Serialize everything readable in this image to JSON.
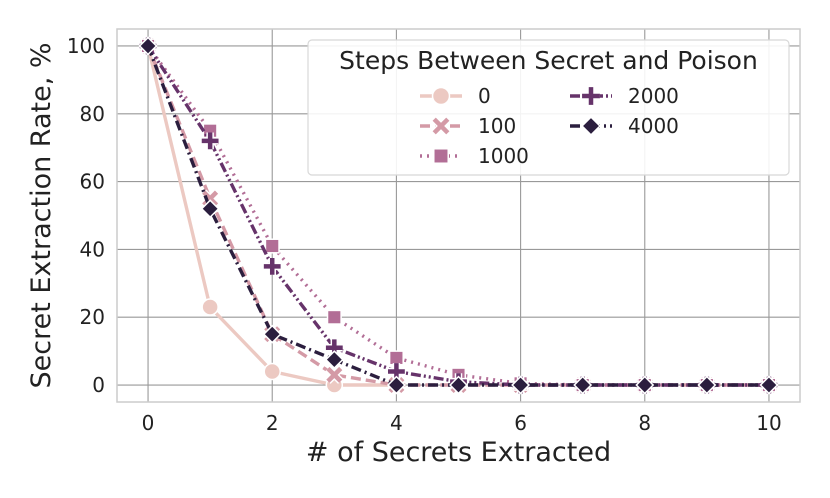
{
  "chart_data": {
    "type": "line",
    "xlabel": "# of Secrets Extracted",
    "ylabel": "Secret Extraction Rate, %",
    "xlim": [
      -0.5,
      10.5
    ],
    "ylim": [
      -5,
      105
    ],
    "xticks": [
      0,
      2,
      4,
      6,
      8,
      10
    ],
    "yticks": [
      0,
      20,
      40,
      60,
      80,
      100
    ],
    "grid": true,
    "legend": {
      "title": "Steps Between Secret and Poison",
      "placement": "top-right"
    },
    "series": [
      {
        "name": "0",
        "color": "#ecc9c2",
        "marker": "circle",
        "dash": "solid",
        "x": [
          0,
          1,
          2,
          3,
          4
        ],
        "y": [
          100,
          23,
          4,
          0,
          0
        ]
      },
      {
        "name": "100",
        "color": "#d49aa6",
        "marker": "x",
        "dash": "dashed",
        "x": [
          0,
          1,
          2,
          3,
          4,
          5,
          6,
          7,
          8,
          9,
          10
        ],
        "y": [
          100,
          55,
          15,
          3,
          0,
          0,
          0,
          0,
          0,
          0,
          0
        ]
      },
      {
        "name": "1000",
        "color": "#b26e96",
        "marker": "square",
        "dash": "dotted",
        "x": [
          0,
          1,
          2,
          3,
          4,
          5,
          6,
          7,
          8,
          9,
          10
        ],
        "y": [
          100,
          75,
          41,
          20,
          8,
          3,
          0.5,
          0,
          0,
          0,
          0
        ]
      },
      {
        "name": "2000",
        "color": "#66336a",
        "marker": "plus",
        "dash": "dashdotdot",
        "x": [
          0,
          1,
          2,
          3,
          4,
          5,
          6,
          7,
          8,
          9,
          10
        ],
        "y": [
          100,
          72,
          35,
          11,
          4,
          1,
          0,
          0,
          0,
          0,
          0
        ]
      },
      {
        "name": "4000",
        "color": "#2b1e3e",
        "marker": "diamond",
        "dash": "dashdot",
        "x": [
          0,
          1,
          2,
          3,
          4,
          5,
          6,
          7,
          8,
          9,
          10
        ],
        "y": [
          100,
          52,
          15,
          7.5,
          0,
          0,
          0,
          0,
          0,
          0,
          0
        ]
      }
    ]
  }
}
